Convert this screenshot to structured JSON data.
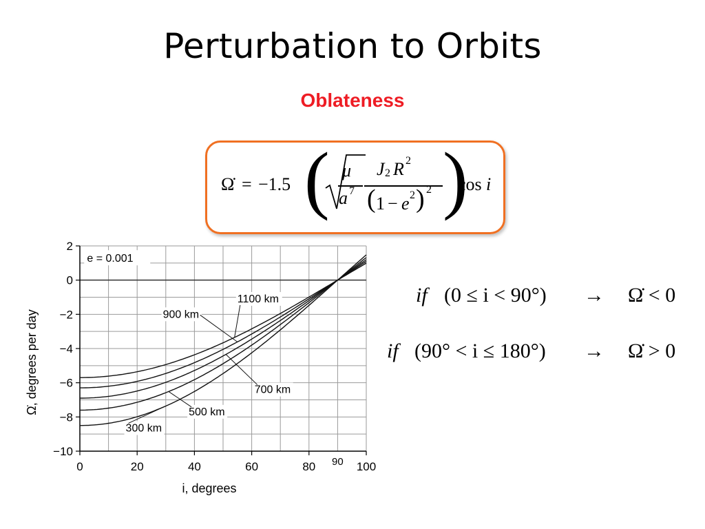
{
  "slide": {
    "title": "Perturbation to Orbits",
    "subtitle": "Oblateness"
  },
  "formula": {
    "lhs": "Ω̇",
    "equals": "=",
    "coefficient": "−1.5",
    "mu": "μ",
    "a": "a",
    "a_exp": "7",
    "J": "J",
    "J_sub": "2",
    "R": "R",
    "R_exp": "2",
    "one": "1",
    "minus": "−",
    "e": "e",
    "e_exp": "2",
    "denom_exp": "2",
    "cos": "cos",
    "i": "i",
    "border_color": "#f07022"
  },
  "conditions": [
    {
      "if": "if",
      "condition": "(0 ≤ i < 90°)",
      "arrow": "→",
      "result": "Ω̇ < 0"
    },
    {
      "if": "if",
      "condition": "(90° < i ≤ 180°)",
      "arrow": "→",
      "result": "Ω̇ > 0"
    }
  ],
  "chart_data": {
    "type": "line",
    "xlabel": "i, degrees",
    "ylabel": "Ω̇, degrees per day",
    "xlim": [
      0,
      100
    ],
    "ylim": [
      -10,
      2
    ],
    "x_ticks": [
      "0",
      "20",
      "40",
      "60",
      "80",
      "100"
    ],
    "y_ticks": [
      "2",
      "0",
      "−2",
      "−4",
      "−6",
      "−8",
      "−10"
    ],
    "extra_tick": "90",
    "annotation": "e = 0.001",
    "grid": true,
    "series": [
      {
        "name": "300 km",
        "i0_value": -8.5
      },
      {
        "name": "500 km",
        "i0_value": -7.6
      },
      {
        "name": "700 km",
        "i0_value": -6.9
      },
      {
        "name": "900 km",
        "i0_value": -6.3
      },
      {
        "name": "1100 km",
        "i0_value": -5.7
      }
    ],
    "x": [
      0,
      10,
      20,
      30,
      40,
      50,
      60,
      70,
      80,
      90,
      100
    ],
    "relation": "value(i) = i0_value × cos(i)"
  }
}
